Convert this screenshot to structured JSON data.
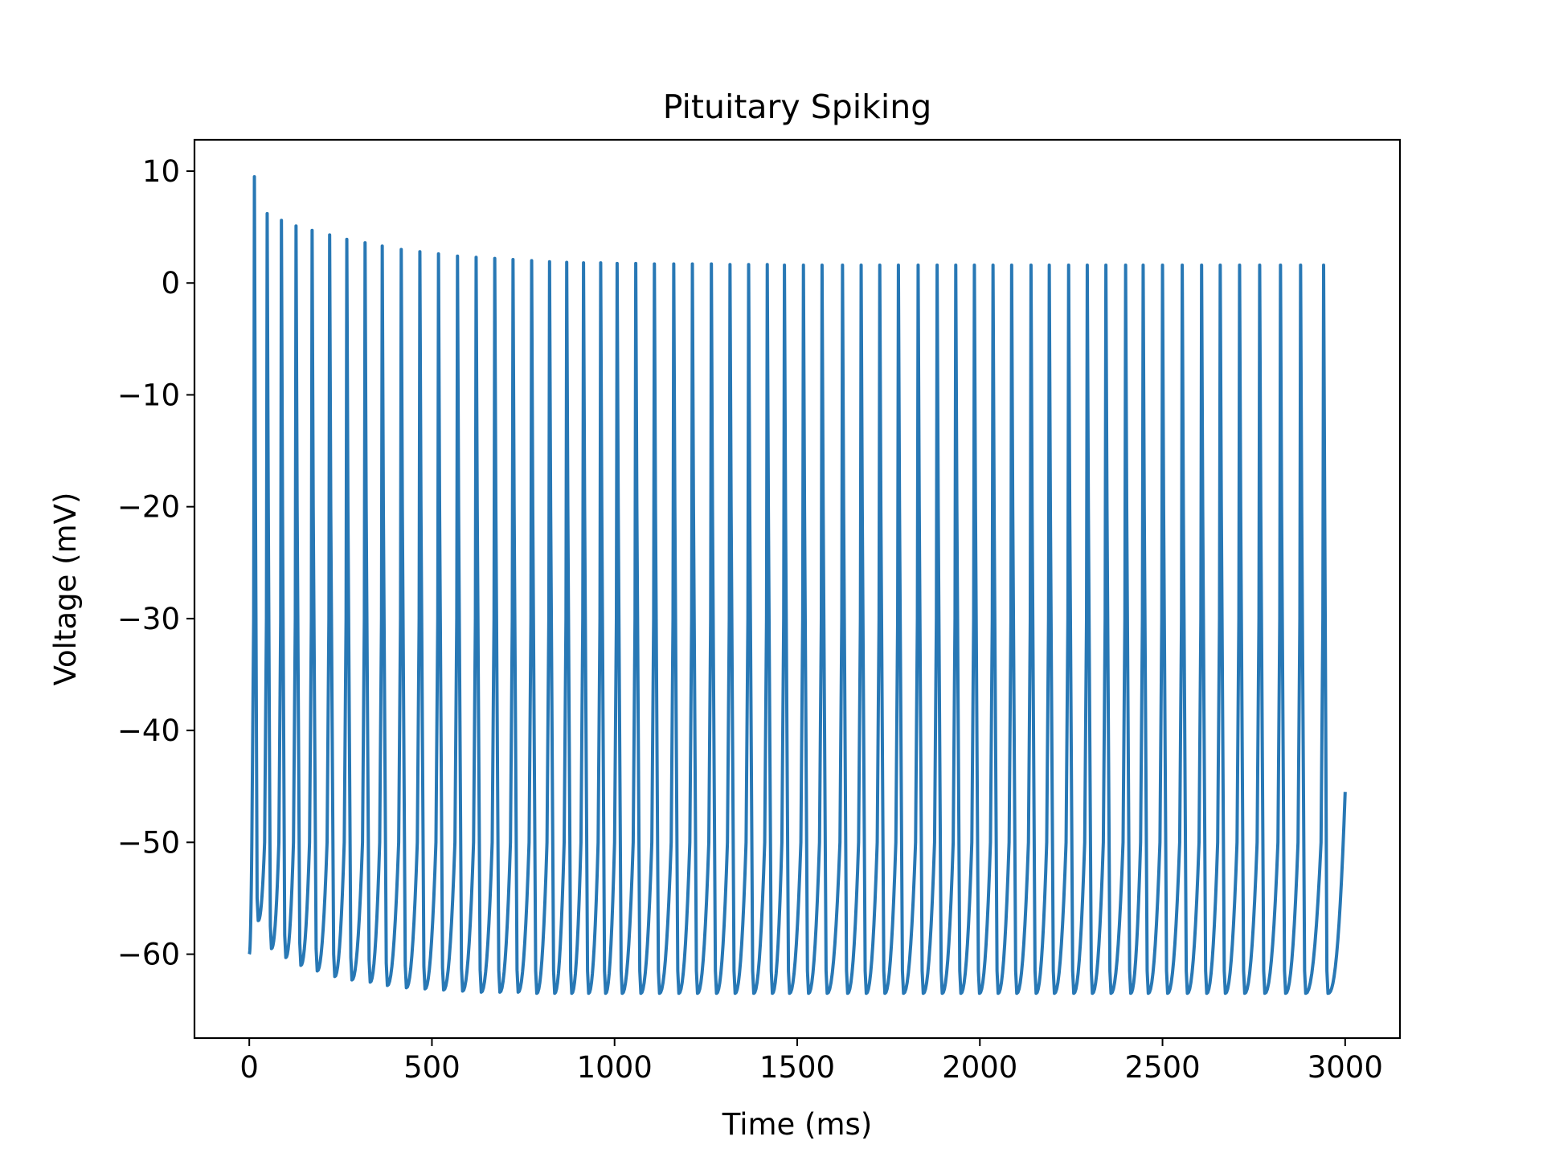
{
  "chart_data": {
    "type": "line",
    "title": "Pituitary Spiking",
    "xlabel": "Time (ms)",
    "ylabel": "Voltage (mV)",
    "xlim": [
      -150,
      3150
    ],
    "ylim": [
      -67.5,
      12.8
    ],
    "xticks": [
      0,
      500,
      1000,
      1500,
      2000,
      2500,
      3000
    ],
    "xtick_labels": [
      "0",
      "500",
      "1000",
      "1500",
      "2000",
      "2500",
      "3000"
    ],
    "yticks": [
      10,
      0,
      -10,
      -20,
      -30,
      -40,
      -50,
      -60
    ],
    "ytick_labels": [
      "10",
      "0",
      "−10",
      "−20",
      "−30",
      "−40",
      "−50",
      "−60"
    ],
    "grid": false,
    "line_color": "#2878b5",
    "series": [
      {
        "start": {
          "t": 0,
          "v": -60
        },
        "end": {
          "t": 3000,
          "v": -45.5
        },
        "spike_times": [
          14,
          49,
          88,
          128,
          172,
          220,
          267,
          317,
          364,
          416,
          467,
          518,
          570,
          621,
          672,
          722,
          773,
          822,
          869,
          915,
          962,
          1007,
          1058,
          1109,
          1162,
          1213,
          1265,
          1316,
          1367,
          1418,
          1465,
          1517,
          1568,
          1624,
          1675,
          1726,
          1777,
          1831,
          1883,
          1934,
          1985,
          2036,
          2087,
          2140,
          2190,
          2243,
          2294,
          2345,
          2399,
          2447,
          2500,
          2554,
          2607,
          2658,
          2711,
          2766,
          2823,
          2878,
          2941
        ],
        "spike_peaks": [
          9.5,
          6.2,
          5.6,
          5.1,
          4.7,
          4.3,
          3.9,
          3.6,
          3.3,
          3.0,
          2.8,
          2.6,
          2.4,
          2.3,
          2.2,
          2.1,
          2.0,
          1.9,
          1.85,
          1.8,
          1.8,
          1.75,
          1.75,
          1.7,
          1.7,
          1.7,
          1.7,
          1.65,
          1.65,
          1.65,
          1.6,
          1.6,
          1.6,
          1.6,
          1.6,
          1.6,
          1.6,
          1.6,
          1.6,
          1.6,
          1.6,
          1.6,
          1.6,
          1.6,
          1.6,
          1.6,
          1.6,
          1.6,
          1.6,
          1.6,
          1.6,
          1.6,
          1.6,
          1.6,
          1.6,
          1.6,
          1.6,
          1.6,
          1.6
        ],
        "troughs": [
          -57,
          -59.5,
          -60.3,
          -61,
          -61.5,
          -62,
          -62.3,
          -62.5,
          -62.8,
          -63,
          -63.1,
          -63.2,
          -63.3,
          -63.4,
          -63.4,
          -63.4,
          -63.5,
          -63.5,
          -63.5,
          -63.5,
          -63.5,
          -63.5,
          -63.5,
          -63.5,
          -63.5,
          -63.5,
          -63.5,
          -63.5,
          -63.5,
          -63.5,
          -63.5,
          -63.5,
          -63.5,
          -63.5,
          -63.5,
          -63.5,
          -63.5,
          -63.5,
          -63.5,
          -63.5,
          -63.5,
          -63.5,
          -63.5,
          -63.5,
          -63.5,
          -63.5,
          -63.5,
          -63.5,
          -63.5,
          -63.5,
          -63.5,
          -63.5,
          -63.5,
          -63.5,
          -63.5,
          -63.5,
          -63.5,
          -63.5,
          -63.5
        ]
      }
    ]
  }
}
